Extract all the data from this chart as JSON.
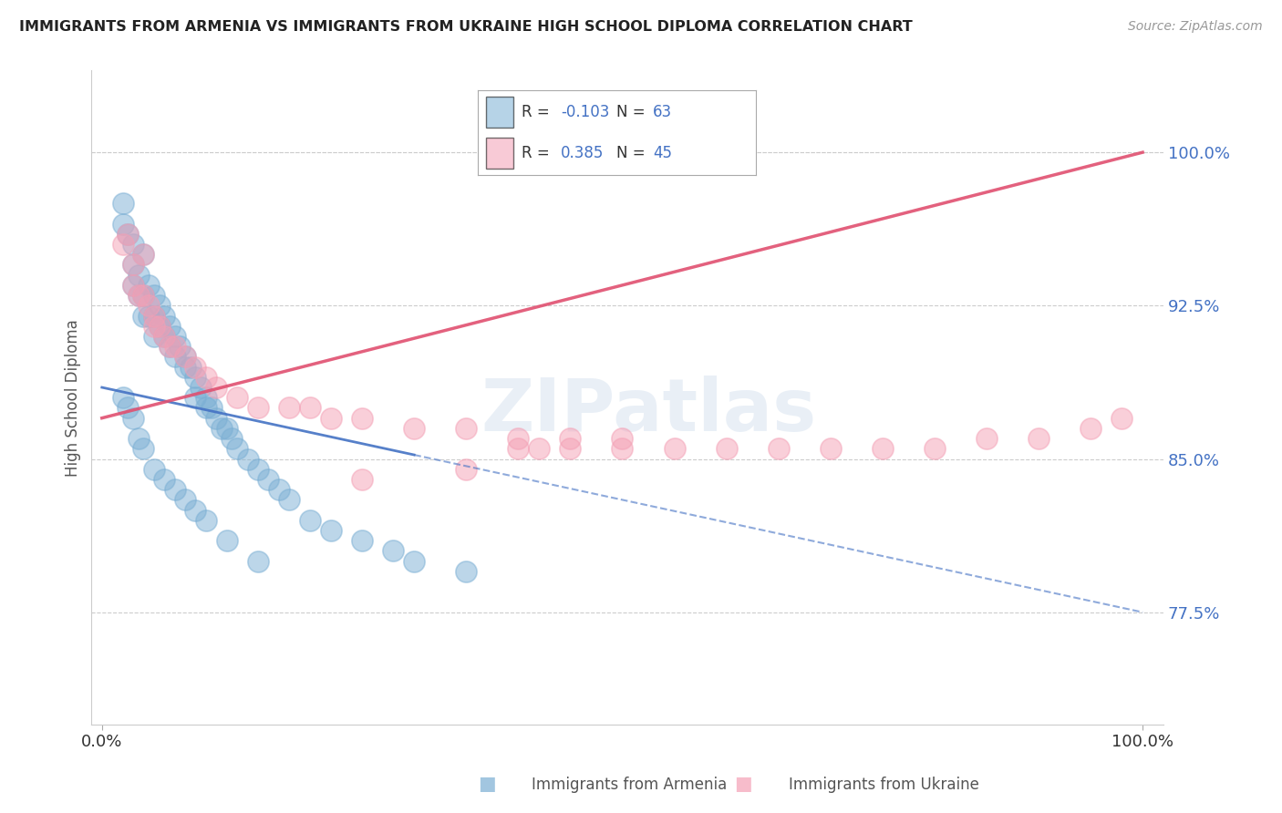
{
  "title": "IMMIGRANTS FROM ARMENIA VS IMMIGRANTS FROM UKRAINE HIGH SCHOOL DIPLOMA CORRELATION CHART",
  "source": "Source: ZipAtlas.com",
  "ylabel": "High School Diploma",
  "legend_R_armenia": "-0.103",
  "legend_N_armenia": "63",
  "legend_R_ukraine": "0.385",
  "legend_N_ukraine": "45",
  "ytick_vals": [
    0.775,
    0.85,
    0.925,
    1.0
  ],
  "ytick_labels": [
    "77.5%",
    "85.0%",
    "92.5%",
    "100.0%"
  ],
  "color_armenia": "#7BAFD4",
  "color_ukraine": "#F4A0B5",
  "color_armenia_line": "#4472C4",
  "color_ukraine_line": "#E05070",
  "color_ytick": "#4472C4",
  "watermark_text": "ZIPatlas",
  "legend_label_armenia": "Immigrants from Armenia",
  "legend_label_ukraine": "Immigrants from Ukraine",
  "arm_x": [
    0.02,
    0.02,
    0.025,
    0.03,
    0.03,
    0.03,
    0.035,
    0.035,
    0.04,
    0.04,
    0.04,
    0.045,
    0.045,
    0.05,
    0.05,
    0.05,
    0.055,
    0.055,
    0.06,
    0.06,
    0.065,
    0.065,
    0.07,
    0.07,
    0.075,
    0.08,
    0.08,
    0.085,
    0.09,
    0.09,
    0.095,
    0.1,
    0.1,
    0.105,
    0.11,
    0.115,
    0.12,
    0.125,
    0.13,
    0.14,
    0.15,
    0.16,
    0.17,
    0.18,
    0.2,
    0.22,
    0.25,
    0.28,
    0.3,
    0.35,
    0.02,
    0.025,
    0.03,
    0.035,
    0.04,
    0.05,
    0.06,
    0.07,
    0.08,
    0.09,
    0.1,
    0.12,
    0.15
  ],
  "arm_y": [
    0.975,
    0.965,
    0.96,
    0.955,
    0.945,
    0.935,
    0.94,
    0.93,
    0.95,
    0.93,
    0.92,
    0.935,
    0.92,
    0.93,
    0.92,
    0.91,
    0.925,
    0.915,
    0.92,
    0.91,
    0.915,
    0.905,
    0.91,
    0.9,
    0.905,
    0.9,
    0.895,
    0.895,
    0.89,
    0.88,
    0.885,
    0.88,
    0.875,
    0.875,
    0.87,
    0.865,
    0.865,
    0.86,
    0.855,
    0.85,
    0.845,
    0.84,
    0.835,
    0.83,
    0.82,
    0.815,
    0.81,
    0.805,
    0.8,
    0.795,
    0.88,
    0.875,
    0.87,
    0.86,
    0.855,
    0.845,
    0.84,
    0.835,
    0.83,
    0.825,
    0.82,
    0.81,
    0.8
  ],
  "ukr_x": [
    0.02,
    0.025,
    0.03,
    0.03,
    0.035,
    0.04,
    0.04,
    0.045,
    0.05,
    0.05,
    0.055,
    0.06,
    0.065,
    0.07,
    0.08,
    0.09,
    0.1,
    0.11,
    0.13,
    0.15,
    0.18,
    0.2,
    0.22,
    0.25,
    0.3,
    0.35,
    0.4,
    0.45,
    0.5,
    0.4,
    0.42,
    0.45,
    0.5,
    0.55,
    0.6,
    0.65,
    0.7,
    0.75,
    0.8,
    0.85,
    0.9,
    0.95,
    0.98,
    0.25,
    0.35
  ],
  "ukr_y": [
    0.955,
    0.96,
    0.945,
    0.935,
    0.93,
    0.95,
    0.93,
    0.925,
    0.92,
    0.915,
    0.915,
    0.91,
    0.905,
    0.905,
    0.9,
    0.895,
    0.89,
    0.885,
    0.88,
    0.875,
    0.875,
    0.875,
    0.87,
    0.87,
    0.865,
    0.865,
    0.86,
    0.86,
    0.86,
    0.855,
    0.855,
    0.855,
    0.855,
    0.855,
    0.855,
    0.855,
    0.855,
    0.855,
    0.855,
    0.86,
    0.86,
    0.865,
    0.87,
    0.84,
    0.845
  ]
}
